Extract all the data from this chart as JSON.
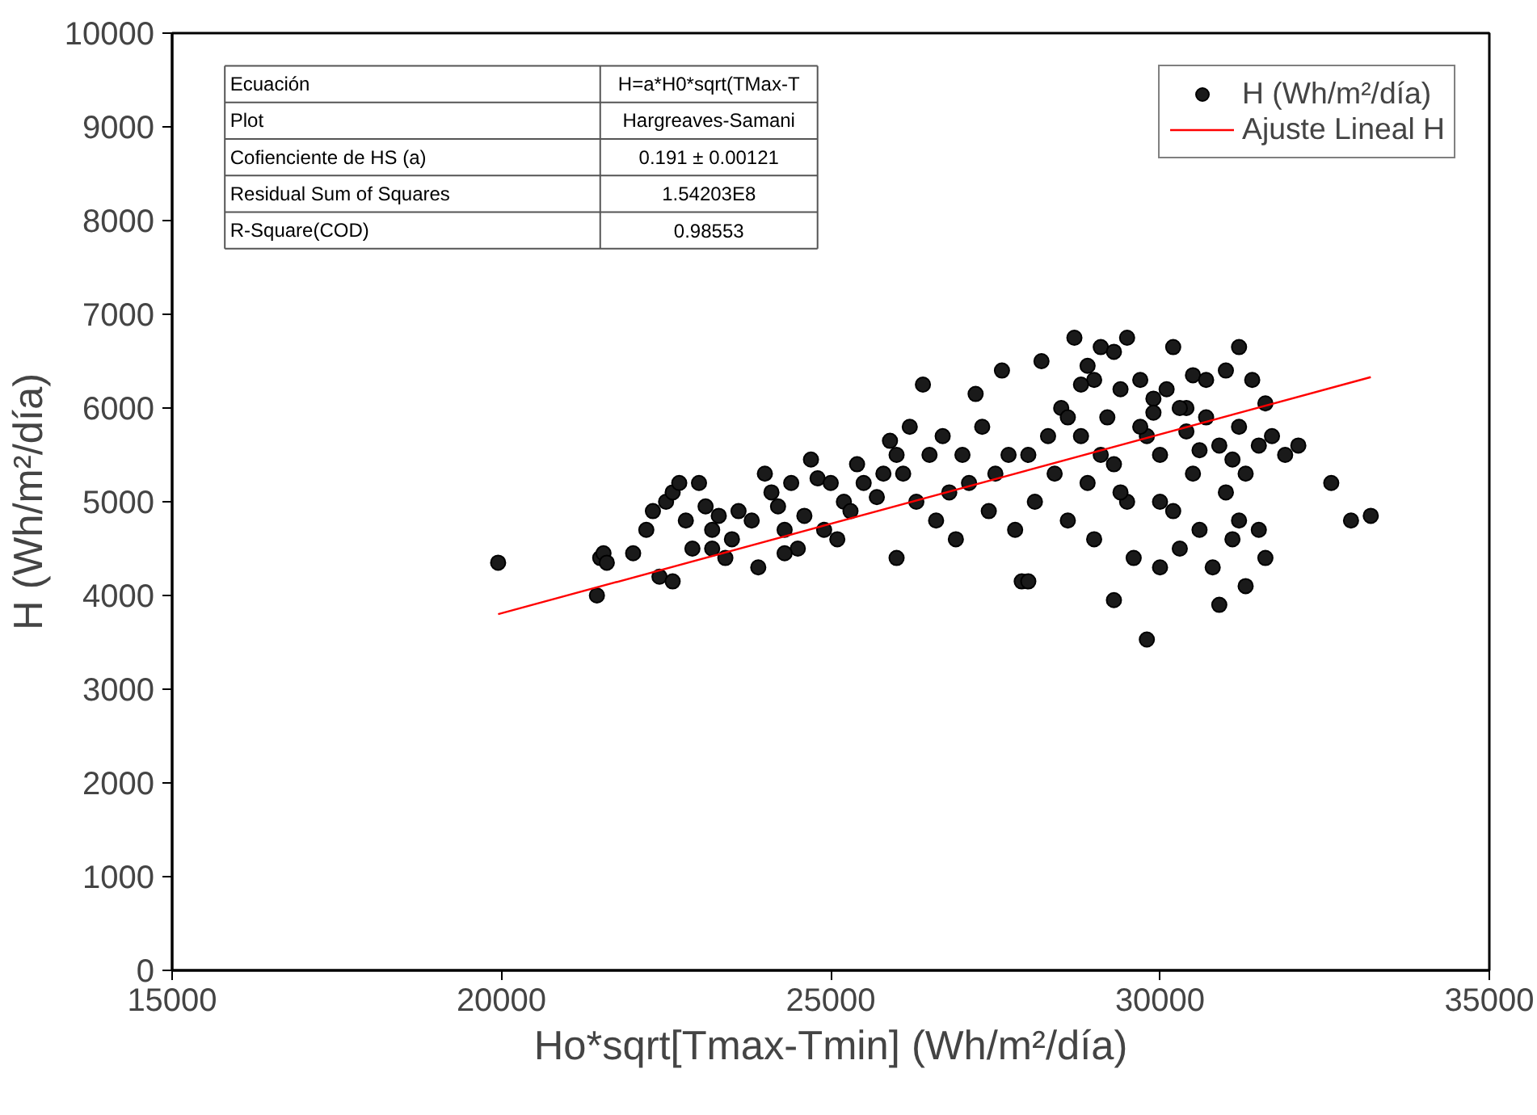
{
  "chart_data": {
    "type": "scatter",
    "xlabel": "Ho*sqrt[Tmax-Tmin] (Wh/m²/día)",
    "ylabel": "H (Wh/m²/día)",
    "xlim": [
      15000,
      35000
    ],
    "ylim": [
      0,
      10000
    ],
    "xticks": [
      15000,
      20000,
      25000,
      30000,
      35000
    ],
    "yticks": [
      0,
      1000,
      2000,
      3000,
      4000,
      5000,
      6000,
      7000,
      8000,
      9000,
      10000
    ],
    "grid": false,
    "legend": "top right",
    "annotations": [
      "Ecuación",
      "H=a*H0*sqrt(TMax-T",
      "Plot",
      "Hargreaves-Samani",
      "Cofienciente de HS (a)",
      "0.191 ± 0.00121",
      "Residual Sum of Squares",
      "1.54203E8",
      "R-Square(COD)",
      "0.98553"
    ],
    "series": [
      {
        "name": "H (Wh/m²/día)",
        "marker": "circle",
        "color": "#1a1a1a",
        "x": [
          19950,
          21450,
          21500,
          21550,
          21600,
          22000,
          22200,
          22300,
          22400,
          22500,
          22600,
          22700,
          22800,
          22900,
          23000,
          23100,
          23200,
          23300,
          23400,
          23500,
          23600,
          23800,
          23900,
          24000,
          24100,
          24200,
          24300,
          24400,
          24500,
          24600,
          24700,
          24800,
          24900,
          25000,
          25100,
          25200,
          25300,
          25400,
          25500,
          25700,
          25900,
          26000,
          26100,
          26200,
          26300,
          26400,
          26500,
          26600,
          26800,
          26900,
          27000,
          27100,
          27200,
          27300,
          27400,
          27600,
          27700,
          27800,
          27900,
          28000,
          28100,
          28200,
          28300,
          28400,
          28500,
          28600,
          28700,
          28800,
          28900,
          29000,
          29000,
          29100,
          29200,
          29300,
          29300,
          29400,
          29500,
          29500,
          29600,
          29700,
          29800,
          29800,
          29900,
          30000,
          30000,
          30100,
          30200,
          30200,
          30300,
          30400,
          30500,
          30500,
          30600,
          30700,
          30800,
          30900,
          30900,
          31000,
          31000,
          31100,
          31200,
          31200,
          31300,
          31300,
          31400,
          31500,
          31500,
          31600,
          31600,
          31700,
          31900,
          32100,
          32600,
          32900,
          33200,
          28800,
          29700,
          30300,
          29100,
          28600,
          27500,
          26700,
          25800,
          24300,
          23200,
          22600,
          30700,
          31200,
          30000,
          29400,
          28000,
          26000,
          29300,
          29900,
          30600,
          28900,
          30400,
          31100
        ],
        "values": [
          4350,
          4000,
          4400,
          4450,
          4350,
          4450,
          4700,
          4900,
          4200,
          5000,
          5100,
          5200,
          4800,
          4500,
          5200,
          4950,
          4700,
          4850,
          4400,
          4600,
          4900,
          4800,
          4300,
          5300,
          5100,
          4950,
          4700,
          5200,
          4500,
          4850,
          5450,
          5250,
          4700,
          5200,
          4600,
          5000,
          4900,
          5400,
          5200,
          5050,
          5650,
          5500,
          5300,
          5800,
          5000,
          6250,
          5500,
          4800,
          5100,
          4600,
          5500,
          5200,
          6150,
          5800,
          4900,
          6400,
          5500,
          4700,
          4150,
          5500,
          5000,
          6500,
          5700,
          5300,
          6000,
          4800,
          6750,
          5700,
          5200,
          6300,
          4600,
          6650,
          5900,
          5400,
          3950,
          6200,
          6750,
          5000,
          4400,
          6300,
          3530,
          5700,
          6100,
          4300,
          5500,
          6200,
          6650,
          4900,
          4500,
          6000,
          5300,
          6350,
          4700,
          5900,
          4300,
          3900,
          5600,
          6400,
          5100,
          4600,
          6650,
          5800,
          4100,
          5300,
          6300,
          4700,
          5600,
          4400,
          6050,
          5700,
          5500,
          5600,
          5200,
          4800,
          4850,
          6250,
          5800,
          6000,
          5500,
          5900,
          5300,
          5700,
          5300,
          4450,
          4500,
          4150,
          6300,
          4800,
          5000,
          5100,
          4150,
          4400,
          6600,
          5950,
          5550,
          6450,
          5750,
          5450
        ]
      },
      {
        "name": "Ajuste Lineal H",
        "type": "line",
        "color": "#ff0000",
        "line_style": "solid",
        "x": [
          19950,
          33200
        ],
        "values": [
          3800,
          6330
        ]
      }
    ]
  }
}
